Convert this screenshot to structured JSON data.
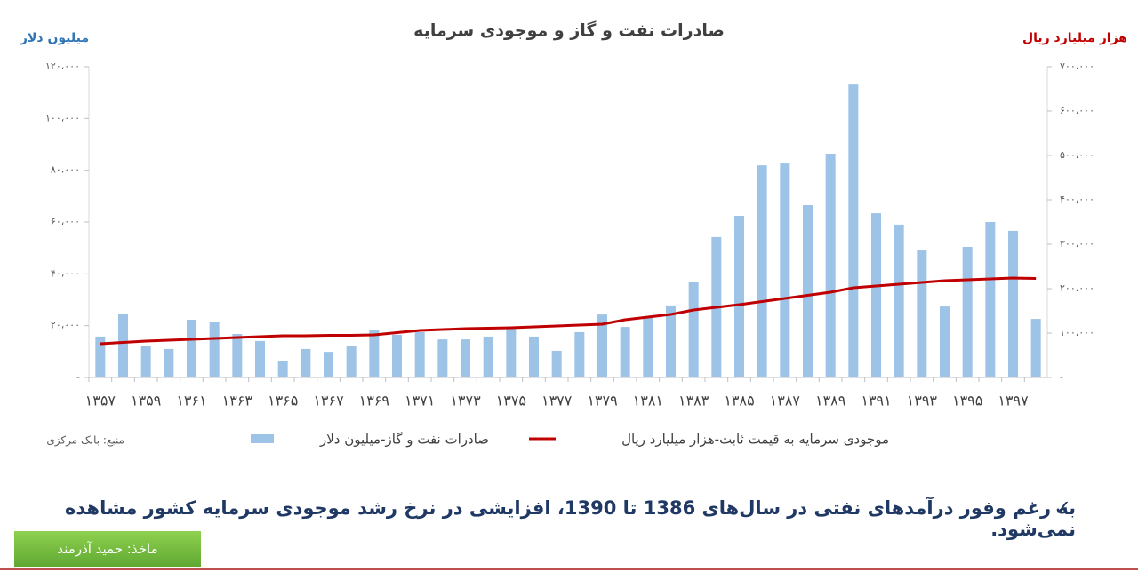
{
  "chart_data": {
    "type": "bar-line",
    "title": "صادرات نفت و گاز و موجودی سرمایه",
    "y_label": "میلیون دلار",
    "y2_label": "هزار میلیارد ریال",
    "source": "منبع: بانک مرکزی",
    "note": "به رغم وفور درآمدهای نفتی در سال‌های 1386 تا 1390، افزایشی در نرخ رشد موجودی سرمایه کشور مشاهده نمی‌شود.",
    "credit": "ماخذ: حمید آذرمند",
    "categories": [
      "۱۳۵۷",
      null,
      "۱۳۵۹",
      null,
      "۱۳۶۱",
      null,
      "۱۳۶۳",
      null,
      "۱۳۶۵",
      null,
      "۱۳۶۷",
      null,
      "۱۳۶۹",
      null,
      "۱۳۷۱",
      null,
      "۱۳۷۳",
      null,
      "۱۳۷۵",
      null,
      "۱۳۷۷",
      null,
      "۱۳۷۹",
      null,
      "۱۳۸۱",
      null,
      "۱۳۸۳",
      null,
      "۱۳۸۵",
      null,
      "۱۳۸۷",
      null,
      "۱۳۸۹",
      null,
      "۱۳۹۱",
      null,
      "۱۳۹۳",
      null,
      "۱۳۹۵",
      null,
      "۱۳۹۷",
      null
    ],
    "series": [
      {
        "name": "صادرات نفت و گاز-میلیون دلار",
        "type": "bar",
        "color": "#9dc3e6",
        "values": [
          15800,
          24700,
          12300,
          11000,
          22300,
          21600,
          16800,
          14100,
          6500,
          11000,
          9900,
          12300,
          18200,
          16500,
          17500,
          14700,
          14700,
          15800,
          18900,
          15800,
          10300,
          17500,
          24300,
          19500,
          23000,
          27800,
          36700,
          54200,
          62400,
          81900,
          82600,
          66500,
          86400,
          113100,
          63400,
          59000,
          49000,
          27400,
          50400,
          60000,
          56600,
          22600
        ]
      },
      {
        "name": "موجودی سرمایه به قیمت ثابت-هزار میلیارد ریال",
        "type": "line",
        "axis": "y2",
        "color": "#c00000",
        "values": [
          76000,
          79000,
          82000,
          84000,
          86000,
          88000,
          90000,
          92000,
          94000,
          94000,
          95000,
          95000,
          96000,
          101000,
          106000,
          108000,
          110000,
          111000,
          112000,
          114000,
          116000,
          118000,
          120000,
          130000,
          136000,
          142000,
          152000,
          158000,
          164000,
          171000,
          178000,
          185000,
          192000,
          202000,
          206000,
          210000,
          214000,
          218000,
          220000,
          222000,
          224000,
          223000
        ]
      }
    ],
    "ylim": [
      0,
      120000
    ],
    "yticks": [
      {
        "value": 0,
        "label": "-"
      },
      {
        "value": 20000,
        "label": "۲۰،۰۰۰"
      },
      {
        "value": 40000,
        "label": "۴۰،۰۰۰"
      },
      {
        "value": 60000,
        "label": "۶۰،۰۰۰"
      },
      {
        "value": 80000,
        "label": "۸۰،۰۰۰"
      },
      {
        "value": 100000,
        "label": "۱۰۰،۰۰۰"
      },
      {
        "value": 120000,
        "label": "۱۲۰،۰۰۰"
      }
    ],
    "y2lim": [
      0,
      700000
    ],
    "y2ticks": [
      {
        "value": 0,
        "label": "-"
      },
      {
        "value": 100000,
        "label": "۱۰۰،۰۰۰"
      },
      {
        "value": 200000,
        "label": "۲۰۰،۰۰۰"
      },
      {
        "value": 300000,
        "label": "۳۰۰،۰۰۰"
      },
      {
        "value": 400000,
        "label": "۴۰۰،۰۰۰"
      },
      {
        "value": 500000,
        "label": "۵۰۰،۰۰۰"
      },
      {
        "value": 600000,
        "label": "۶۰۰،۰۰۰"
      },
      {
        "value": 700000,
        "label": "۷۰۰،۰۰۰"
      }
    ],
    "legend": "bottom"
  }
}
